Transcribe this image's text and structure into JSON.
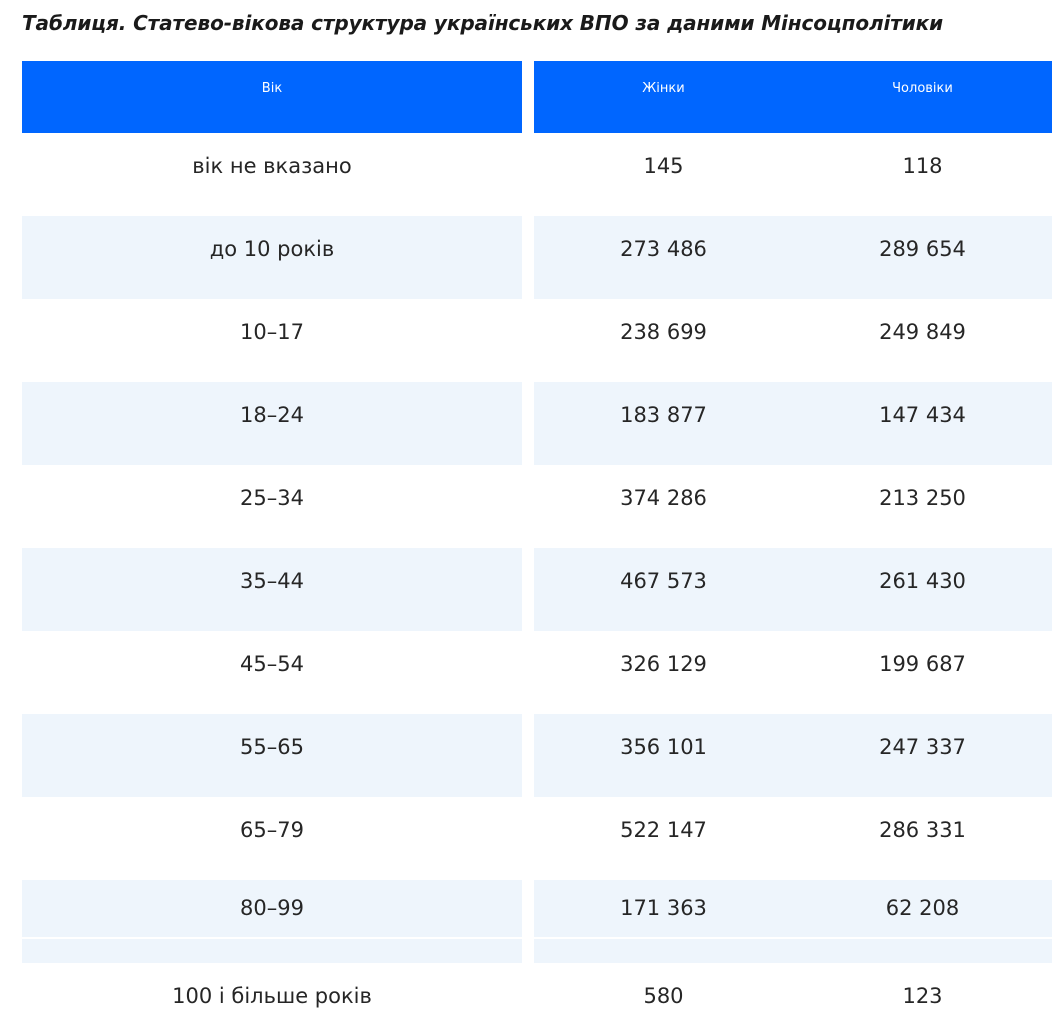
{
  "title": "Таблиця. Статево-вікова структура українських ВПО за даними Мінсоцполітики",
  "table": {
    "headers": {
      "age": "Вік",
      "women": "Жінки",
      "men": "Чоловіки"
    },
    "rows": [
      {
        "age": "вік не вказано",
        "women": "145",
        "men": "118"
      },
      {
        "age": "до 10 років",
        "women": "273 486",
        "men": "289 654"
      },
      {
        "age": "10–17",
        "women": "238 699",
        "men": "249 849"
      },
      {
        "age": "18–24",
        "women": "183 877",
        "men": "147 434"
      },
      {
        "age": "25–34",
        "women": "374 286",
        "men": "213 250"
      },
      {
        "age": "35–44",
        "women": "467 573",
        "men": "261 430"
      },
      {
        "age": "45–54",
        "women": "326 129",
        "men": "199 687"
      },
      {
        "age": "55–65",
        "women": "356 101",
        "men": "247 337"
      },
      {
        "age": "65–79",
        "women": "522 147",
        "men": "286 331"
      },
      {
        "age": "80–99",
        "women": "171 363",
        "men": "62 208"
      },
      {
        "age": "100 і більше років",
        "women": "580",
        "men": "123"
      }
    ]
  },
  "colors": {
    "header_bg": "#0066ff",
    "shaded_row_bg": "#eef5fc"
  }
}
